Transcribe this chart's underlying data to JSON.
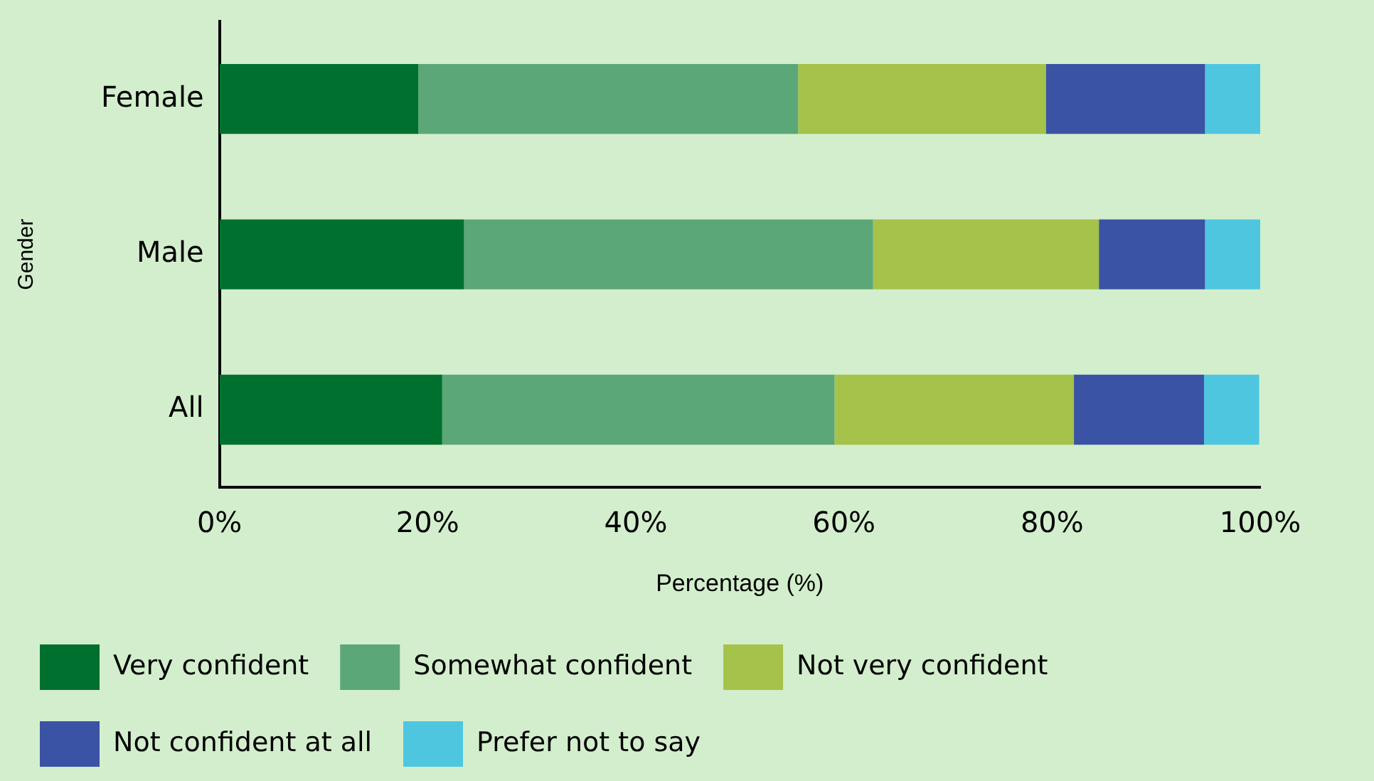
{
  "chart_data": {
    "type": "bar",
    "orientation": "horizontal",
    "stacked": true,
    "xlabel": "Percentage (%)",
    "ylabel": "Gender",
    "categories": [
      "Female",
      "Male",
      "All"
    ],
    "series": [
      {
        "name": "Very confident",
        "color": "#00702e",
        "values": [
          19.1,
          23.5,
          21.4
        ]
      },
      {
        "name": "Somewhat confident",
        "color": "#5ca777",
        "values": [
          36.5,
          39.3,
          37.7
        ]
      },
      {
        "name": "Not very confident",
        "color": "#a5c24a",
        "values": [
          23.8,
          21.7,
          23.0
        ]
      },
      {
        "name": "Not confident at all",
        "color": "#3a53a4",
        "values": [
          15.3,
          10.2,
          12.5
        ]
      },
      {
        "name": "Prefer not to say",
        "color": "#4fc6e0",
        "values": [
          5.3,
          5.3,
          5.3
        ]
      }
    ],
    "xlim": [
      0,
      100
    ],
    "xticks": [
      {
        "value": 0,
        "label": "0%"
      },
      {
        "value": 20,
        "label": "20%"
      },
      {
        "value": 40,
        "label": "40%"
      },
      {
        "value": 60,
        "label": "60%"
      },
      {
        "value": 80,
        "label": "80%"
      },
      {
        "value": 100,
        "label": "100%"
      }
    ],
    "grid": false,
    "legend": "bottom"
  }
}
